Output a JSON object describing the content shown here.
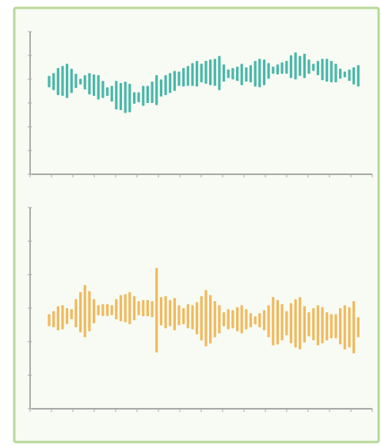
{
  "colors": {
    "panel_border": "#b9d89a",
    "panel_background": "#f7fbf3",
    "axis": "#7a7a7a",
    "tick": "#a8a8a8",
    "teal": "#2aaa9c",
    "orange": "#f0ad42"
  },
  "chart_data": [
    {
      "type": "bar",
      "title": "",
      "xlabel": "",
      "ylabel": "",
      "xlim": [
        0,
        100
      ],
      "ylim": [
        -1,
        1
      ],
      "grid": false,
      "legend": "none",
      "series": [
        {
          "color": "#2aaa9c",
          "x": [
            0,
            1.4,
            2.8,
            4.2,
            5.6,
            7,
            8.4,
            9.8,
            11.2,
            12.6,
            14,
            15.4,
            16.8,
            18.2,
            19.6,
            21,
            22.4,
            23.8,
            25.2,
            26.6,
            28,
            29.4,
            30.8,
            32.2,
            33.6,
            35,
            36.4,
            37.8,
            39.2,
            40.6,
            42,
            43.4,
            44.8,
            46.2,
            47.6,
            49,
            50.4,
            51.8,
            53.2,
            54.6,
            56,
            57.4,
            58.8,
            60.2,
            61.6,
            63,
            64.4,
            65.8,
            67.2,
            68.6,
            70,
            71.4,
            72.8,
            74.2,
            75.6,
            77,
            78.4,
            79.8,
            81.2,
            82.6,
            84,
            85.4,
            86.8,
            88.2,
            89.6,
            91,
            92.4,
            93.8,
            95.2,
            96.6
          ],
          "center": [
            0.3,
            0.3,
            0.3,
            0.31,
            0.31,
            0.31,
            0.31,
            0.3,
            0.29,
            0.27,
            0.25,
            0.22,
            0.19,
            0.16,
            0.13,
            0.11,
            0.09,
            0.08,
            0.07,
            0.07,
            0.08,
            0.1,
            0.12,
            0.15,
            0.18,
            0.21,
            0.25,
            0.28,
            0.31,
            0.34,
            0.36,
            0.38,
            0.4,
            0.41,
            0.42,
            0.43,
            0.43,
            0.43,
            0.42,
            0.42,
            0.41,
            0.41,
            0.41,
            0.4,
            0.4,
            0.41,
            0.41,
            0.42,
            0.43,
            0.45,
            0.46,
            0.47,
            0.49,
            0.5,
            0.51,
            0.52,
            0.52,
            0.52,
            0.51,
            0.5,
            0.49,
            0.47,
            0.46,
            0.44,
            0.42,
            0.41,
            0.4,
            0.39,
            0.38,
            0.38
          ],
          "amplitude": [
            0.08,
            0.12,
            0.19,
            0.21,
            0.24,
            0.17,
            0.1,
            0.04,
            0.1,
            0.15,
            0.15,
            0.17,
            0.12,
            0.06,
            0.11,
            0.2,
            0.19,
            0.22,
            0.2,
            0.08,
            0.07,
            0.14,
            0.12,
            0.15,
            0.21,
            0.12,
            0.14,
            0.14,
            0.14,
            0.1,
            0.13,
            0.14,
            0.16,
            0.18,
            0.13,
            0.16,
            0.18,
            0.19,
            0.24,
            0.12,
            0.06,
            0.08,
            0.1,
            0.15,
            0.1,
            0.12,
            0.18,
            0.2,
            0.18,
            0.11,
            0.05,
            0.07,
            0.08,
            0.09,
            0.16,
            0.19,
            0.14,
            0.17,
            0.1,
            0.05,
            0.1,
            0.15,
            0.16,
            0.15,
            0.13,
            0.07,
            0.04,
            0.08,
            0.12,
            0.15
          ]
        }
      ]
    },
    {
      "type": "bar",
      "title": "",
      "xlabel": "",
      "ylabel": "",
      "xlim": [
        0,
        100
      ],
      "ylim": [
        -1,
        1
      ],
      "grid": false,
      "legend": "none",
      "series": [
        {
          "color": "#f0ad42",
          "x": [
            0,
            1.4,
            2.8,
            4.2,
            5.6,
            7,
            8.4,
            9.8,
            11.2,
            12.6,
            14,
            15.4,
            16.8,
            18.2,
            19.6,
            21,
            22.4,
            23.8,
            25.2,
            26.6,
            28,
            29.4,
            30.8,
            32.2,
            33.6,
            35,
            36.4,
            37.8,
            39.2,
            40.6,
            42,
            43.4,
            44.8,
            46.2,
            47.6,
            49,
            50.4,
            51.8,
            53.2,
            54.6,
            56,
            57.4,
            58.8,
            60.2,
            61.6,
            63,
            64.4,
            65.8,
            67.2,
            68.6,
            70,
            71.4,
            72.8,
            74.2,
            75.6,
            77,
            78.4,
            79.8,
            81.2,
            82.6,
            84,
            85.4,
            86.8,
            88.2,
            89.6,
            91,
            92.4,
            93.8,
            95.2,
            96.6
          ],
          "center": [
            -0.12,
            -0.11,
            -0.1,
            -0.09,
            -0.08,
            -0.06,
            -0.05,
            -0.04,
            -0.03,
            -0.03,
            -0.03,
            -0.02,
            -0.02,
            -0.02,
            -0.02,
            -0.01,
            0,
            0,
            0,
            0,
            0,
            0,
            0,
            -0.01,
            -0.02,
            -0.03,
            -0.04,
            -0.05,
            -0.06,
            -0.07,
            -0.08,
            -0.08,
            -0.09,
            -0.1,
            -0.1,
            -0.1,
            -0.11,
            -0.11,
            -0.11,
            -0.11,
            -0.11,
            -0.11,
            -0.11,
            -0.11,
            -0.11,
            -0.12,
            -0.12,
            -0.12,
            -0.12,
            -0.13,
            -0.13,
            -0.14,
            -0.14,
            -0.15,
            -0.15,
            -0.15,
            -0.15,
            -0.16,
            -0.16,
            -0.16,
            -0.17,
            -0.17,
            -0.18,
            -0.18,
            -0.18,
            -0.18,
            -0.19,
            -0.19,
            -0.19,
            -0.19
          ],
          "amplitude": [
            0.06,
            0.08,
            0.12,
            0.12,
            0.08,
            0.05,
            0.14,
            0.2,
            0.26,
            0.2,
            0.12,
            0.05,
            0.06,
            0.06,
            0.05,
            0.1,
            0.13,
            0.14,
            0.16,
            0.12,
            0.07,
            0.08,
            0.08,
            0.08,
            0.42,
            0.14,
            0.16,
            0.13,
            0.16,
            0.1,
            0.08,
            0.12,
            0.12,
            0.16,
            0.22,
            0.28,
            0.24,
            0.18,
            0.14,
            0.07,
            0.1,
            0.09,
            0.12,
            0.14,
            0.1,
            0.07,
            0.04,
            0.07,
            0.1,
            0.16,
            0.24,
            0.22,
            0.18,
            0.12,
            0.2,
            0.24,
            0.26,
            0.18,
            0.12,
            0.16,
            0.2,
            0.18,
            0.14,
            0.12,
            0.12,
            0.18,
            0.22,
            0.2,
            0.26,
            0.1
          ]
        }
      ]
    }
  ]
}
